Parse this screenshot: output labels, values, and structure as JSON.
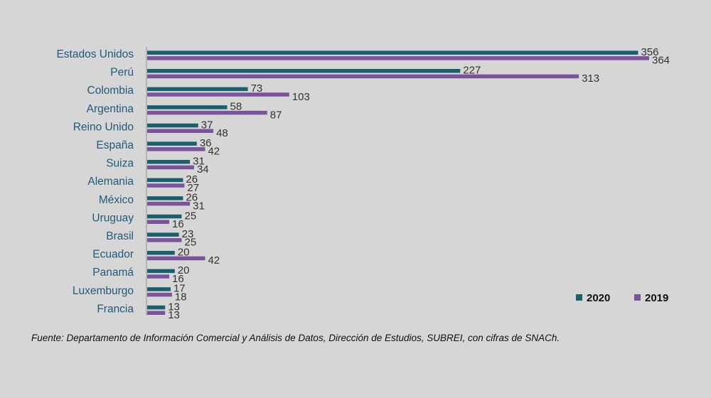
{
  "chart_data": {
    "type": "bar",
    "orientation": "horizontal",
    "categories": [
      "Estados Unidos",
      "Perú",
      "Colombia",
      "Argentina",
      "Reino Unido",
      "España",
      "Suiza",
      "Alemania",
      "México",
      "Uruguay",
      "Brasil",
      "Ecuador",
      "Panamá",
      "Luxemburgo",
      "Francia"
    ],
    "series": [
      {
        "name": "2020",
        "color": "#1b5e6e",
        "values": [
          356,
          227,
          73,
          58,
          37,
          36,
          31,
          26,
          26,
          25,
          23,
          20,
          20,
          17,
          13
        ]
      },
      {
        "name": "2019",
        "color": "#7b529c",
        "values": [
          364,
          313,
          103,
          87,
          48,
          42,
          34,
          27,
          31,
          16,
          25,
          42,
          16,
          18,
          13
        ]
      }
    ],
    "xlim": [
      0,
      364
    ],
    "grid": false,
    "legend": "bottom-right"
  },
  "source_note": "Fuente: Departamento de Información Comercial y Análisis de Datos, Dirección de Estudios, SUBREI, con cifras de SNACh."
}
